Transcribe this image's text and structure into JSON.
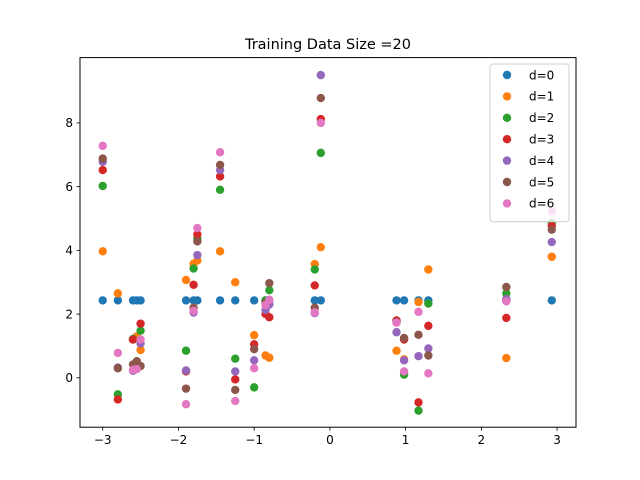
{
  "chart_data": {
    "type": "scatter",
    "title": "Training Data Size =20",
    "xlabel": "",
    "ylabel": "",
    "xlim": [
      -3.3,
      3.25
    ],
    "ylim": [
      -1.55,
      10.05
    ],
    "xticks": [
      -3,
      -2,
      -1,
      0,
      1,
      2,
      3
    ],
    "yticks": [
      0,
      2,
      4,
      6,
      8
    ],
    "grid": false,
    "legend_position": "top-right",
    "x": [
      -3.0,
      -2.8,
      -2.6,
      -2.55,
      -2.5,
      -1.9,
      -1.8,
      -1.75,
      -1.45,
      -1.25,
      -1.0,
      -0.85,
      -0.8,
      -0.2,
      -0.12,
      0.88,
      0.98,
      1.17,
      1.3,
      2.33,
      2.93
    ],
    "series": [
      {
        "name": "d=0",
        "color": "#1f77b4",
        "y": [
          2.43,
          2.43,
          2.43,
          2.43,
          2.43,
          2.43,
          2.43,
          2.43,
          2.43,
          2.43,
          2.43,
          2.43,
          2.43,
          2.43,
          2.43,
          2.43,
          2.43,
          2.43,
          2.43,
          2.43,
          2.43
        ]
      },
      {
        "name": "d=1",
        "color": "#ff7f0e",
        "y": [
          3.97,
          2.65,
          1.2,
          1.3,
          0.87,
          3.07,
          3.58,
          3.68,
          3.97,
          3.0,
          1.34,
          0.7,
          0.63,
          3.57,
          4.1,
          0.85,
          0.58,
          2.38,
          3.4,
          0.62,
          3.8
        ]
      },
      {
        "name": "d=2",
        "color": "#2ca02c",
        "y": [
          6.02,
          -0.52,
          1.22,
          0.37,
          1.48,
          0.85,
          3.43,
          4.37,
          5.9,
          0.6,
          -0.3,
          2.43,
          2.75,
          3.4,
          7.06,
          1.78,
          0.1,
          -1.03,
          2.33,
          2.65,
          4.86
        ]
      },
      {
        "name": "d=3",
        "color": "#d62728",
        "y": [
          6.52,
          -0.68,
          1.2,
          0.45,
          1.7,
          0.2,
          2.92,
          4.5,
          6.32,
          -0.05,
          1.05,
          2.0,
          1.9,
          2.9,
          8.12,
          1.8,
          1.2,
          -0.77,
          1.63,
          1.88,
          4.77
        ]
      },
      {
        "name": "d=4",
        "color": "#9467bd",
        "y": [
          6.78,
          0.32,
          0.22,
          0.5,
          1.08,
          0.23,
          2.05,
          3.85,
          6.52,
          0.2,
          0.55,
          2.13,
          2.3,
          2.03,
          9.5,
          1.43,
          0.55,
          0.68,
          0.92,
          2.47,
          4.26
        ]
      },
      {
        "name": "d=5",
        "color": "#8c564b",
        "y": [
          6.88,
          0.3,
          0.42,
          0.52,
          0.37,
          -0.34,
          2.2,
          4.28,
          6.68,
          -0.38,
          0.9,
          2.35,
          2.97,
          2.2,
          8.78,
          1.75,
          1.25,
          1.35,
          0.7,
          2.85,
          4.65
        ]
      },
      {
        "name": "d=6",
        "color": "#e377c2",
        "y": [
          7.28,
          0.78,
          0.25,
          0.27,
          1.2,
          -0.83,
          2.1,
          4.7,
          7.08,
          -0.73,
          0.3,
          2.28,
          2.45,
          2.05,
          8.0,
          1.73,
          0.2,
          2.07,
          0.14,
          2.4,
          5.23
        ]
      }
    ]
  }
}
